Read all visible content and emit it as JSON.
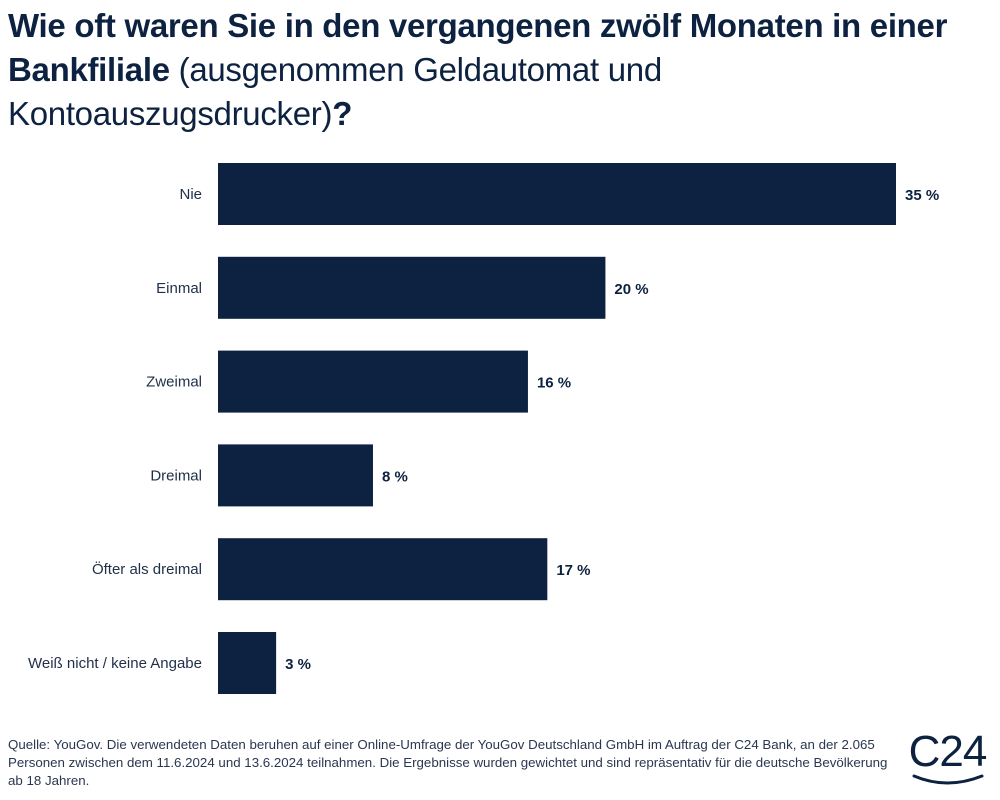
{
  "title": {
    "bold_part": "Wie oft waren Sie in den vergangenen zwölf Monaten in einer Bankfiliale",
    "normal_part": " (ausgenommen Geldautomat und Kontoauszugsdrucker)",
    "end_mark": "?"
  },
  "chart_data": {
    "type": "bar",
    "orientation": "horizontal",
    "categories": [
      "Nie",
      "Einmal",
      "Zweimal",
      "Dreimal",
      "Öfter als dreimal",
      "Weiß nicht / keine Angabe"
    ],
    "values": [
      35,
      20,
      16,
      8,
      17,
      3
    ],
    "value_labels": [
      "35 %",
      "20 %",
      "16 %",
      "8 %",
      "17 %",
      "3 %"
    ],
    "unit": "%",
    "xlim": [
      0,
      35
    ],
    "grid": false,
    "legend": "none",
    "bar_color": "#0d2240"
  },
  "source": {
    "text": "Quelle: YouGov. Die verwendeten Daten beruhen auf einer Online-Umfrage der YouGov Deutschland GmbH im Auftrag der C24 Bank, an der 2.065 Personen zwischen dem 11.6.2024 und 13.6.2024 teilnahmen. Die Ergebnisse wurden gewichtet und sind repräsentativ für die deutsche Bevölkerung ab 18 Jahren."
  },
  "logo": {
    "text": "C24"
  }
}
